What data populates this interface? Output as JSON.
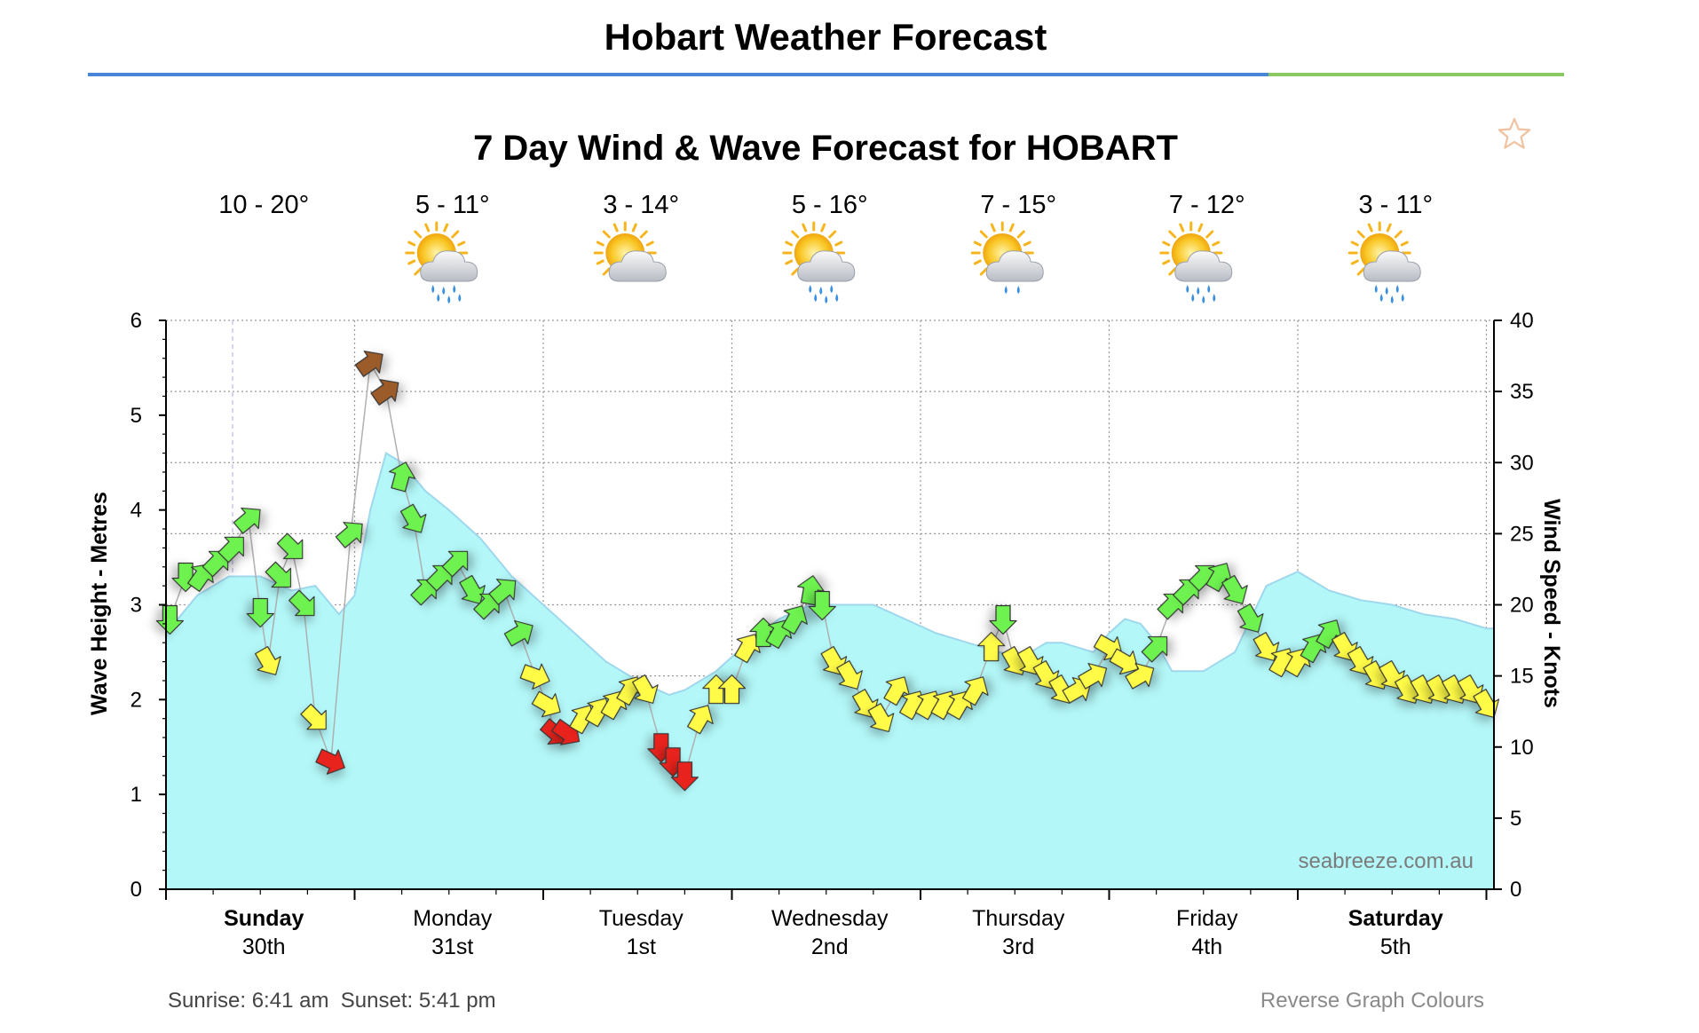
{
  "page": {
    "title": "Hobart Weather Forecast"
  },
  "footer": {
    "sunrise_label": "Sunrise: 6:41 am",
    "sunset_label": "Sunset: 5:41 pm",
    "reverse_link": "Reverse Graph Colours"
  },
  "colors": {
    "wave_fill": "#b3f7f8",
    "wave_line": "#9fd7ec",
    "wind_green": "#6ef24f",
    "wind_yellow": "#fffb46",
    "wind_red": "#e8221c",
    "wind_brown": "#9b5c2a",
    "title_rule_blue": "#4a86d8",
    "title_rule_green": "#8bc862"
  },
  "chart_data": {
    "type": "area",
    "title": "7 Day Wind & Wave Forecast for HOBART",
    "watermark": "seabreeze.com.au",
    "ylabel_left": "Wave Height - Metres",
    "ylabel_right": "Wind Speed - Knots",
    "ylim_left": [
      0,
      6
    ],
    "ylim_right": [
      0,
      40
    ],
    "left_ticks": [
      "0",
      "1",
      "2",
      "3",
      "4",
      "5",
      "6"
    ],
    "right_ticks": [
      "0",
      "5",
      "10",
      "15",
      "20",
      "25",
      "30",
      "35",
      "40"
    ],
    "x_start_hour": 0,
    "x_end_hour": 169,
    "days": [
      {
        "name": "Sunday",
        "date": "30th",
        "temp": "10 - 20°",
        "icon": "",
        "bold": true
      },
      {
        "name": "Monday",
        "date": "31st",
        "temp": "5 - 11°",
        "icon": "sun-cloud-rain-icon",
        "bold": false
      },
      {
        "name": "Tuesday",
        "date": "1st",
        "temp": "3 - 14°",
        "icon": "sun-cloud-icon",
        "bold": false
      },
      {
        "name": "Wednesday",
        "date": "2nd",
        "temp": "5 - 16°",
        "icon": "sun-cloud-rain-icon",
        "bold": false
      },
      {
        "name": "Thursday",
        "date": "3rd",
        "temp": "7 - 15°",
        "icon": "sun-cloud-drizzle-icon",
        "bold": false
      },
      {
        "name": "Friday",
        "date": "4th",
        "temp": "7 - 12°",
        "icon": "sun-cloud-rain-icon",
        "bold": false
      },
      {
        "name": "Saturday",
        "date": "5th",
        "temp": "3 - 11°",
        "icon": "sun-cloud-rain-icon",
        "bold": true
      }
    ],
    "wave_series": {
      "name": "Wave Height (m)",
      "points": [
        [
          0,
          2.7
        ],
        [
          4,
          3.1
        ],
        [
          8,
          3.3
        ],
        [
          12,
          3.3
        ],
        [
          16,
          3.15
        ],
        [
          19,
          3.2
        ],
        [
          22,
          2.9
        ],
        [
          24,
          3.1
        ],
        [
          26,
          4.0
        ],
        [
          28,
          4.6
        ],
        [
          30,
          4.5
        ],
        [
          33,
          4.2
        ],
        [
          36,
          4.0
        ],
        [
          40,
          3.7
        ],
        [
          44,
          3.3
        ],
        [
          48,
          3.0
        ],
        [
          52,
          2.7
        ],
        [
          56,
          2.4
        ],
        [
          60,
          2.2
        ],
        [
          64,
          2.05
        ],
        [
          66,
          2.1
        ],
        [
          70,
          2.3
        ],
        [
          74,
          2.6
        ],
        [
          78,
          2.85
        ],
        [
          82,
          3.0
        ],
        [
          86,
          3.0
        ],
        [
          90,
          3.0
        ],
        [
          94,
          2.85
        ],
        [
          98,
          2.7
        ],
        [
          102,
          2.6
        ],
        [
          106,
          2.5
        ],
        [
          109,
          2.45
        ],
        [
          112,
          2.6
        ],
        [
          114,
          2.6
        ],
        [
          118,
          2.5
        ],
        [
          120,
          2.7
        ],
        [
          122,
          2.85
        ],
        [
          124,
          2.8
        ],
        [
          126,
          2.6
        ],
        [
          128,
          2.3
        ],
        [
          132,
          2.3
        ],
        [
          136,
          2.5
        ],
        [
          140,
          3.2
        ],
        [
          144,
          3.35
        ],
        [
          148,
          3.15
        ],
        [
          152,
          3.05
        ],
        [
          156,
          3.0
        ],
        [
          158,
          2.95
        ],
        [
          160,
          2.9
        ],
        [
          164,
          2.85
        ],
        [
          168,
          2.75
        ],
        [
          169,
          2.75
        ]
      ]
    },
    "wind_series": {
      "name": "Wind Speed (knots) with direction",
      "arrow_direction_deg": "rotation of arrow glyph, 0 = pointing right",
      "points": [
        {
          "t": 0.5,
          "speed": 19,
          "dir": 90,
          "color": "green"
        },
        {
          "t": 2.5,
          "speed": 22,
          "dir": 90,
          "color": "green"
        },
        {
          "t": 4.5,
          "speed": 22,
          "dir": -55,
          "color": "green"
        },
        {
          "t": 6.5,
          "speed": 23,
          "dir": -45,
          "color": "green"
        },
        {
          "t": 8.5,
          "speed": 24,
          "dir": -45,
          "color": "green"
        },
        {
          "t": 10.5,
          "speed": 26,
          "dir": -40,
          "color": "green"
        },
        {
          "t": 12,
          "speed": 19.5,
          "dir": 90,
          "color": "green"
        },
        {
          "t": 13,
          "speed": 16,
          "dir": 60,
          "color": "yellow"
        },
        {
          "t": 14.5,
          "speed": 22,
          "dir": 45,
          "color": "green"
        },
        {
          "t": 16,
          "speed": 24,
          "dir": 45,
          "color": "green"
        },
        {
          "t": 17.5,
          "speed": 20,
          "dir": 45,
          "color": "green"
        },
        {
          "t": 19,
          "speed": 12,
          "dir": 45,
          "color": "yellow"
        },
        {
          "t": 21,
          "speed": 9,
          "dir": 25,
          "color": "red"
        },
        {
          "t": 23.5,
          "speed": 25,
          "dir": -40,
          "color": "green"
        },
        {
          "t": 26,
          "speed": 37,
          "dir": -35,
          "color": "brown"
        },
        {
          "t": 28,
          "speed": 35,
          "dir": -35,
          "color": "brown"
        },
        {
          "t": 30,
          "speed": 29,
          "dir": -75,
          "color": "green"
        },
        {
          "t": 31.5,
          "speed": 26,
          "dir": 60,
          "color": "green"
        },
        {
          "t": 33,
          "speed": 21,
          "dir": -45,
          "color": "green"
        },
        {
          "t": 35,
          "speed": 22,
          "dir": -45,
          "color": "green"
        },
        {
          "t": 37,
          "speed": 23,
          "dir": -45,
          "color": "green"
        },
        {
          "t": 39,
          "speed": 21,
          "dir": 60,
          "color": "green"
        },
        {
          "t": 41,
          "speed": 20,
          "dir": -45,
          "color": "green"
        },
        {
          "t": 43,
          "speed": 21,
          "dir": -40,
          "color": "green"
        },
        {
          "t": 45,
          "speed": 18,
          "dir": -30,
          "color": "green"
        },
        {
          "t": 47,
          "speed": 15,
          "dir": 20,
          "color": "yellow"
        },
        {
          "t": 48.5,
          "speed": 13,
          "dir": 30,
          "color": "yellow"
        },
        {
          "t": 49.5,
          "speed": 11,
          "dir": 40,
          "color": "red"
        },
        {
          "t": 51,
          "speed": 11,
          "dir": 35,
          "color": "red"
        },
        {
          "t": 53,
          "speed": 12,
          "dir": -60,
          "color": "yellow"
        },
        {
          "t": 55,
          "speed": 12.5,
          "dir": -60,
          "color": "yellow"
        },
        {
          "t": 57,
          "speed": 13,
          "dir": -60,
          "color": "yellow"
        },
        {
          "t": 59,
          "speed": 14,
          "dir": -60,
          "color": "yellow"
        },
        {
          "t": 61,
          "speed": 14,
          "dir": 60,
          "color": "yellow"
        },
        {
          "t": 63,
          "speed": 10,
          "dir": 90,
          "color": "red"
        },
        {
          "t": 64.5,
          "speed": 9,
          "dir": 90,
          "color": "red"
        },
        {
          "t": 66,
          "speed": 8,
          "dir": 90,
          "color": "red"
        },
        {
          "t": 68,
          "speed": 12,
          "dir": -60,
          "color": "yellow"
        },
        {
          "t": 70,
          "speed": 14,
          "dir": -90,
          "color": "yellow"
        },
        {
          "t": 72,
          "speed": 14,
          "dir": -90,
          "color": "yellow"
        },
        {
          "t": 74,
          "speed": 17,
          "dir": -60,
          "color": "yellow"
        },
        {
          "t": 76,
          "speed": 18,
          "dir": -90,
          "color": "green"
        },
        {
          "t": 78,
          "speed": 18,
          "dir": -60,
          "color": "green"
        },
        {
          "t": 80,
          "speed": 19,
          "dir": -60,
          "color": "green"
        },
        {
          "t": 82,
          "speed": 21,
          "dir": -80,
          "color": "green"
        },
        {
          "t": 83.5,
          "speed": 20,
          "dir": 90,
          "color": "green"
        },
        {
          "t": 85,
          "speed": 16,
          "dir": 60,
          "color": "yellow"
        },
        {
          "t": 87,
          "speed": 15,
          "dir": 60,
          "color": "yellow"
        },
        {
          "t": 89,
          "speed": 13,
          "dir": 60,
          "color": "yellow"
        },
        {
          "t": 91,
          "speed": 12,
          "dir": 60,
          "color": "yellow"
        },
        {
          "t": 93,
          "speed": 14,
          "dir": -60,
          "color": "yellow"
        },
        {
          "t": 95,
          "speed": 13,
          "dir": -60,
          "color": "yellow"
        },
        {
          "t": 97,
          "speed": 13,
          "dir": -60,
          "color": "yellow"
        },
        {
          "t": 99,
          "speed": 13,
          "dir": -60,
          "color": "yellow"
        },
        {
          "t": 101,
          "speed": 13,
          "dir": -60,
          "color": "yellow"
        },
        {
          "t": 103,
          "speed": 14,
          "dir": -60,
          "color": "yellow"
        },
        {
          "t": 105,
          "speed": 17,
          "dir": -90,
          "color": "yellow"
        },
        {
          "t": 106.5,
          "speed": 19,
          "dir": 90,
          "color": "green"
        },
        {
          "t": 108,
          "speed": 16,
          "dir": 60,
          "color": "yellow"
        },
        {
          "t": 110,
          "speed": 16,
          "dir": 60,
          "color": "yellow"
        },
        {
          "t": 112,
          "speed": 15,
          "dir": 60,
          "color": "yellow"
        },
        {
          "t": 114,
          "speed": 14,
          "dir": 60,
          "color": "yellow"
        },
        {
          "t": 116,
          "speed": 14,
          "dir": -30,
          "color": "yellow"
        },
        {
          "t": 118,
          "speed": 15,
          "dir": -30,
          "color": "yellow"
        },
        {
          "t": 120,
          "speed": 17,
          "dir": 30,
          "color": "yellow"
        },
        {
          "t": 122,
          "speed": 16,
          "dir": 30,
          "color": "yellow"
        },
        {
          "t": 124,
          "speed": 15,
          "dir": -30,
          "color": "yellow"
        },
        {
          "t": 126,
          "speed": 17,
          "dir": -45,
          "color": "green"
        },
        {
          "t": 128,
          "speed": 20,
          "dir": -45,
          "color": "green"
        },
        {
          "t": 130,
          "speed": 21,
          "dir": -45,
          "color": "green"
        },
        {
          "t": 132,
          "speed": 22,
          "dir": -45,
          "color": "green"
        },
        {
          "t": 134,
          "speed": 22,
          "dir": -60,
          "color": "green"
        },
        {
          "t": 136,
          "speed": 21,
          "dir": 60,
          "color": "green"
        },
        {
          "t": 138,
          "speed": 19,
          "dir": 60,
          "color": "green"
        },
        {
          "t": 140,
          "speed": 17,
          "dir": 60,
          "color": "yellow"
        },
        {
          "t": 142,
          "speed": 16,
          "dir": -60,
          "color": "yellow"
        },
        {
          "t": 144,
          "speed": 16,
          "dir": -60,
          "color": "yellow"
        },
        {
          "t": 146,
          "speed": 17,
          "dir": -60,
          "color": "green"
        },
        {
          "t": 148,
          "speed": 18,
          "dir": -60,
          "color": "green"
        },
        {
          "t": 150,
          "speed": 17,
          "dir": 60,
          "color": "yellow"
        },
        {
          "t": 152,
          "speed": 16,
          "dir": 60,
          "color": "yellow"
        },
        {
          "t": 154,
          "speed": 15,
          "dir": 60,
          "color": "yellow"
        },
        {
          "t": 156,
          "speed": 15,
          "dir": 60,
          "color": "yellow"
        },
        {
          "t": 158,
          "speed": 14,
          "dir": 60,
          "color": "yellow"
        },
        {
          "t": 160,
          "speed": 14,
          "dir": 60,
          "color": "yellow"
        },
        {
          "t": 162,
          "speed": 14,
          "dir": 60,
          "color": "yellow"
        },
        {
          "t": 164,
          "speed": 14,
          "dir": 60,
          "color": "yellow"
        },
        {
          "t": 166,
          "speed": 14,
          "dir": 60,
          "color": "yellow"
        },
        {
          "t": 168,
          "speed": 13,
          "dir": 60,
          "color": "yellow"
        }
      ]
    }
  }
}
